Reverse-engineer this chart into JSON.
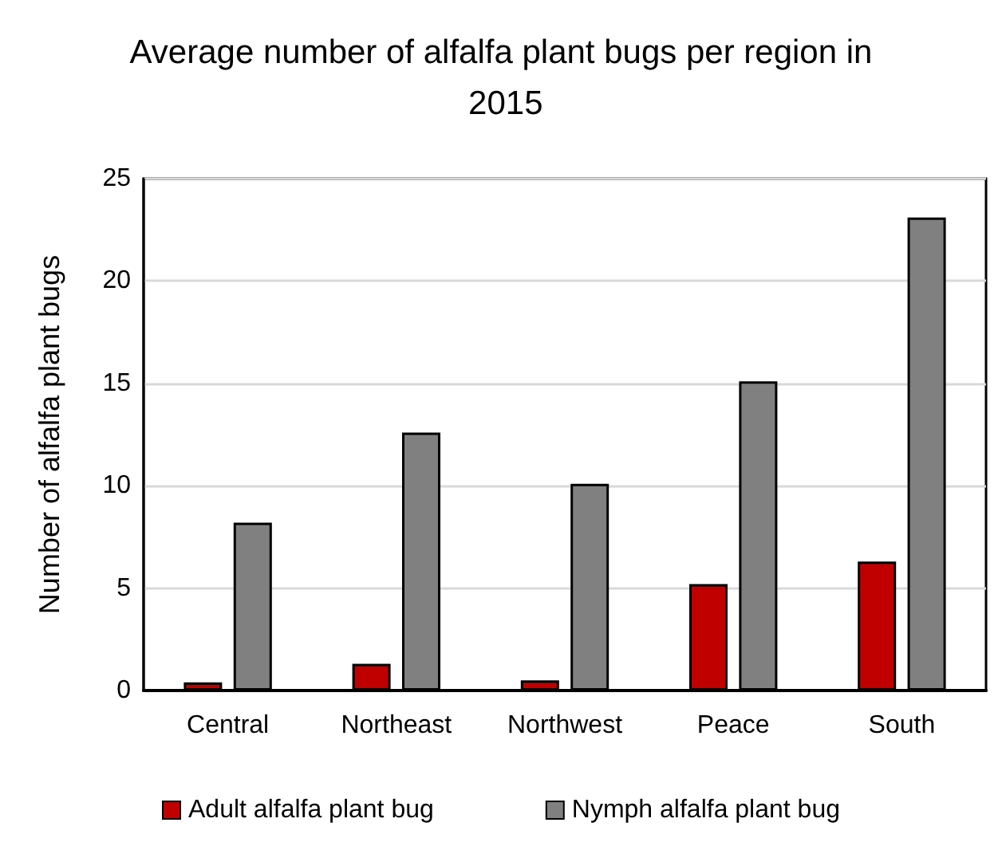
{
  "chart_data": {
    "type": "bar",
    "title": "Average number of alfalfa plant bugs per region in 2015",
    "ylabel": "Number of alfalfa plant bugs",
    "categories": [
      "Central",
      "Northeast",
      "Northwest",
      "Peace",
      "South"
    ],
    "series": [
      {
        "name": "Adult alfalfa plant bug",
        "color": "#c00000",
        "values": [
          0.4,
          1.3,
          0.5,
          5.2,
          6.3
        ]
      },
      {
        "name": "Nymph alfalfa plant bug",
        "color": "#808080",
        "values": [
          8.2,
          12.6,
          10.1,
          15.1,
          23.1
        ]
      }
    ],
    "ylim": [
      0,
      25
    ],
    "yticks": [
      0,
      5,
      10,
      15,
      20,
      25
    ],
    "grid": "y",
    "legend": "bottom"
  }
}
